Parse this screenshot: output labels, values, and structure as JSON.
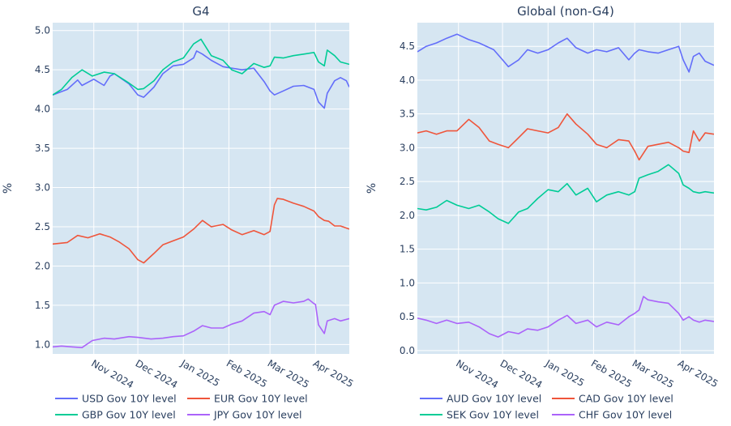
{
  "chart_data": [
    {
      "type": "line",
      "title": "G4",
      "ylabel": "%",
      "xlabel": "",
      "ylim": [
        0.88,
        5.1
      ],
      "grid": true,
      "legend_position": "bottom",
      "x_range": [
        "2024-10-04",
        "2025-04-24"
      ],
      "x_ticks": [
        {
          "date": "2024-11-01",
          "label": "Nov 2024"
        },
        {
          "date": "2024-12-01",
          "label": "Dec 2024"
        },
        {
          "date": "2025-01-01",
          "label": "Jan 2025"
        },
        {
          "date": "2025-02-01",
          "label": "Feb 2025"
        },
        {
          "date": "2025-03-01",
          "label": "Mar 2025"
        },
        {
          "date": "2025-04-01",
          "label": "Apr 2025"
        }
      ],
      "y_ticks": [
        1.0,
        1.5,
        2.0,
        2.5,
        3.0,
        3.5,
        4.0,
        4.5,
        5.0
      ],
      "y_tick_labels": [
        "1.0",
        "1.5",
        "2.0",
        "2.5",
        "3.0",
        "3.5",
        "4.0",
        "4.5",
        "5.0"
      ],
      "series": [
        {
          "name": "USD Gov 10Y level",
          "color": "#636efa",
          "x": [
            "2024-10-04",
            "2024-10-14",
            "2024-10-21",
            "2024-10-24",
            "2024-11-01",
            "2024-11-08",
            "2024-11-12",
            "2024-11-15",
            "2024-11-25",
            "2024-12-01",
            "2024-12-05",
            "2024-12-12",
            "2024-12-18",
            "2024-12-25",
            "2025-01-01",
            "2025-01-08",
            "2025-01-10",
            "2025-01-14",
            "2025-01-20",
            "2025-01-28",
            "2025-02-03",
            "2025-02-10",
            "2025-02-18",
            "2025-02-25",
            "2025-03-01",
            "2025-03-04",
            "2025-03-10",
            "2025-03-17",
            "2025-03-24",
            "2025-03-31",
            "2025-04-03",
            "2025-04-07",
            "2025-04-09",
            "2025-04-14",
            "2025-04-18",
            "2025-04-22",
            "2025-04-24"
          ],
          "values": [
            4.18,
            4.25,
            4.37,
            4.3,
            4.38,
            4.3,
            4.42,
            4.45,
            4.32,
            4.18,
            4.15,
            4.28,
            4.45,
            4.55,
            4.57,
            4.65,
            4.74,
            4.7,
            4.62,
            4.54,
            4.52,
            4.5,
            4.52,
            4.35,
            4.23,
            4.18,
            4.23,
            4.29,
            4.3,
            4.25,
            4.09,
            4.01,
            4.2,
            4.36,
            4.4,
            4.36,
            4.28
          ]
        },
        {
          "name": "EUR Gov 10Y level",
          "color": "#ef553b",
          "x": [
            "2024-10-04",
            "2024-10-14",
            "2024-10-21",
            "2024-10-28",
            "2024-11-05",
            "2024-11-12",
            "2024-11-18",
            "2024-11-25",
            "2024-12-01",
            "2024-12-05",
            "2024-12-12",
            "2024-12-18",
            "2024-12-25",
            "2025-01-01",
            "2025-01-08",
            "2025-01-14",
            "2025-01-20",
            "2025-01-28",
            "2025-02-03",
            "2025-02-10",
            "2025-02-18",
            "2025-02-25",
            "2025-03-01",
            "2025-03-04",
            "2025-03-06",
            "2025-03-10",
            "2025-03-17",
            "2025-03-24",
            "2025-03-31",
            "2025-04-03",
            "2025-04-07",
            "2025-04-10",
            "2025-04-14",
            "2025-04-18",
            "2025-04-24"
          ],
          "values": [
            2.28,
            2.3,
            2.39,
            2.36,
            2.41,
            2.37,
            2.31,
            2.22,
            2.08,
            2.04,
            2.16,
            2.27,
            2.32,
            2.37,
            2.47,
            2.58,
            2.5,
            2.53,
            2.46,
            2.4,
            2.45,
            2.4,
            2.44,
            2.78,
            2.86,
            2.85,
            2.8,
            2.76,
            2.7,
            2.63,
            2.58,
            2.57,
            2.51,
            2.51,
            2.47
          ]
        },
        {
          "name": "GBP Gov 10Y level",
          "color": "#00cc96",
          "x": [
            "2024-10-04",
            "2024-10-10",
            "2024-10-17",
            "2024-10-24",
            "2024-10-31",
            "2024-11-08",
            "2024-11-15",
            "2024-11-25",
            "2024-12-01",
            "2024-12-05",
            "2024-12-12",
            "2024-12-18",
            "2024-12-25",
            "2025-01-01",
            "2025-01-08",
            "2025-01-13",
            "2025-01-20",
            "2025-01-28",
            "2025-02-03",
            "2025-02-10",
            "2025-02-18",
            "2025-02-25",
            "2025-03-01",
            "2025-03-04",
            "2025-03-10",
            "2025-03-17",
            "2025-03-24",
            "2025-03-31",
            "2025-04-03",
            "2025-04-07",
            "2025-04-09",
            "2025-04-14",
            "2025-04-18",
            "2025-04-24"
          ],
          "values": [
            4.18,
            4.25,
            4.4,
            4.5,
            4.42,
            4.47,
            4.45,
            4.33,
            4.25,
            4.26,
            4.36,
            4.5,
            4.6,
            4.65,
            4.83,
            4.89,
            4.68,
            4.62,
            4.5,
            4.45,
            4.58,
            4.53,
            4.55,
            4.66,
            4.65,
            4.68,
            4.7,
            4.72,
            4.6,
            4.55,
            4.75,
            4.68,
            4.6,
            4.57
          ]
        },
        {
          "name": "JPY Gov 10Y level",
          "color": "#ab63fa",
          "x": [
            "2024-10-04",
            "2024-10-10",
            "2024-10-17",
            "2024-10-24",
            "2024-10-31",
            "2024-11-08",
            "2024-11-15",
            "2024-11-25",
            "2024-12-01",
            "2024-12-10",
            "2024-12-18",
            "2024-12-25",
            "2025-01-01",
            "2025-01-08",
            "2025-01-14",
            "2025-01-20",
            "2025-01-28",
            "2025-02-03",
            "2025-02-10",
            "2025-02-18",
            "2025-02-25",
            "2025-03-01",
            "2025-03-04",
            "2025-03-10",
            "2025-03-17",
            "2025-03-24",
            "2025-03-27",
            "2025-03-31",
            "2025-04-01",
            "2025-04-03",
            "2025-04-07",
            "2025-04-09",
            "2025-04-14",
            "2025-04-18",
            "2025-04-24"
          ],
          "values": [
            0.97,
            0.98,
            0.97,
            0.96,
            1.05,
            1.08,
            1.07,
            1.1,
            1.09,
            1.07,
            1.08,
            1.1,
            1.11,
            1.17,
            1.24,
            1.21,
            1.21,
            1.26,
            1.3,
            1.4,
            1.42,
            1.38,
            1.5,
            1.55,
            1.53,
            1.55,
            1.58,
            1.52,
            1.51,
            1.25,
            1.14,
            1.3,
            1.33,
            1.3,
            1.33
          ]
        }
      ]
    },
    {
      "type": "line",
      "title": "Global (non-G4)",
      "ylabel": "%",
      "xlabel": "",
      "ylim": [
        -0.05,
        4.85
      ],
      "grid": true,
      "legend_position": "bottom",
      "x_range": [
        "2024-10-04",
        "2025-04-24"
      ],
      "x_ticks": [
        {
          "date": "2024-11-01",
          "label": "Nov 2024"
        },
        {
          "date": "2024-12-01",
          "label": "Dec 2024"
        },
        {
          "date": "2025-01-01",
          "label": "Jan 2025"
        },
        {
          "date": "2025-02-01",
          "label": "Feb 2025"
        },
        {
          "date": "2025-03-01",
          "label": "Mar 2025"
        },
        {
          "date": "2025-04-01",
          "label": "Apr 2025"
        }
      ],
      "y_ticks": [
        0.0,
        0.5,
        1.0,
        1.5,
        2.0,
        2.5,
        3.0,
        3.5,
        4.0,
        4.5
      ],
      "y_tick_labels": [
        "0.0",
        "0.5",
        "1.0",
        "1.5",
        "2.0",
        "2.5",
        "3.0",
        "3.5",
        "4.0",
        "4.5"
      ],
      "series": [
        {
          "name": "AUD Gov 10Y level",
          "color": "#636efa",
          "x": [
            "2024-10-04",
            "2024-10-10",
            "2024-10-17",
            "2024-10-24",
            "2024-10-31",
            "2024-11-08",
            "2024-11-15",
            "2024-11-25",
            "2024-12-01",
            "2024-12-05",
            "2024-12-12",
            "2024-12-18",
            "2024-12-25",
            "2025-01-01",
            "2025-01-08",
            "2025-01-14",
            "2025-01-20",
            "2025-01-28",
            "2025-02-03",
            "2025-02-10",
            "2025-02-18",
            "2025-02-25",
            "2025-03-01",
            "2025-03-04",
            "2025-03-10",
            "2025-03-17",
            "2025-03-24",
            "2025-03-31",
            "2025-04-03",
            "2025-04-07",
            "2025-04-10",
            "2025-04-14",
            "2025-04-18",
            "2025-04-24"
          ],
          "values": [
            4.42,
            4.5,
            4.55,
            4.62,
            4.68,
            4.6,
            4.55,
            4.45,
            4.3,
            4.2,
            4.3,
            4.45,
            4.4,
            4.45,
            4.55,
            4.62,
            4.48,
            4.4,
            4.45,
            4.42,
            4.48,
            4.3,
            4.4,
            4.45,
            4.42,
            4.4,
            4.45,
            4.5,
            4.3,
            4.12,
            4.35,
            4.4,
            4.28,
            4.22
          ]
        },
        {
          "name": "CAD Gov 10Y level",
          "color": "#ef553b",
          "x": [
            "2024-10-04",
            "2024-10-10",
            "2024-10-17",
            "2024-10-24",
            "2024-10-31",
            "2024-11-08",
            "2024-11-15",
            "2024-11-22",
            "2024-11-28",
            "2024-12-05",
            "2024-12-12",
            "2024-12-18",
            "2024-12-25",
            "2025-01-01",
            "2025-01-08",
            "2025-01-14",
            "2025-01-20",
            "2025-01-28",
            "2025-02-03",
            "2025-02-10",
            "2025-02-18",
            "2025-02-25",
            "2025-03-01",
            "2025-03-04",
            "2025-03-10",
            "2025-03-17",
            "2025-03-24",
            "2025-03-31",
            "2025-04-03",
            "2025-04-07",
            "2025-04-10",
            "2025-04-14",
            "2025-04-18",
            "2025-04-24"
          ],
          "values": [
            3.22,
            3.25,
            3.2,
            3.25,
            3.25,
            3.42,
            3.3,
            3.1,
            3.05,
            3.0,
            3.15,
            3.28,
            3.25,
            3.22,
            3.3,
            3.5,
            3.35,
            3.2,
            3.05,
            3.0,
            3.12,
            3.1,
            2.95,
            2.82,
            3.02,
            3.05,
            3.08,
            3.0,
            2.95,
            2.93,
            3.25,
            3.1,
            3.22,
            3.2
          ]
        },
        {
          "name": "SEK Gov 10Y level",
          "color": "#00cc96",
          "x": [
            "2024-10-04",
            "2024-10-10",
            "2024-10-17",
            "2024-10-24",
            "2024-10-31",
            "2024-11-08",
            "2024-11-15",
            "2024-11-22",
            "2024-11-28",
            "2024-12-05",
            "2024-12-12",
            "2024-12-18",
            "2024-12-25",
            "2025-01-01",
            "2025-01-08",
            "2025-01-14",
            "2025-01-20",
            "2025-01-28",
            "2025-02-03",
            "2025-02-10",
            "2025-02-18",
            "2025-02-25",
            "2025-03-01",
            "2025-03-04",
            "2025-03-10",
            "2025-03-17",
            "2025-03-24",
            "2025-03-31",
            "2025-04-03",
            "2025-04-07",
            "2025-04-10",
            "2025-04-14",
            "2025-04-18",
            "2025-04-24"
          ],
          "values": [
            2.1,
            2.08,
            2.12,
            2.22,
            2.15,
            2.1,
            2.15,
            2.05,
            1.95,
            1.88,
            2.05,
            2.1,
            2.25,
            2.38,
            2.35,
            2.47,
            2.3,
            2.4,
            2.2,
            2.3,
            2.35,
            2.3,
            2.35,
            2.55,
            2.6,
            2.65,
            2.75,
            2.62,
            2.45,
            2.4,
            2.35,
            2.33,
            2.35,
            2.33
          ]
        },
        {
          "name": "CHF Gov 10Y level",
          "color": "#ab63fa",
          "x": [
            "2024-10-04",
            "2024-10-10",
            "2024-10-17",
            "2024-10-24",
            "2024-10-31",
            "2024-11-08",
            "2024-11-15",
            "2024-11-22",
            "2024-11-28",
            "2024-12-05",
            "2024-12-12",
            "2024-12-18",
            "2024-12-25",
            "2025-01-01",
            "2025-01-08",
            "2025-01-14",
            "2025-01-20",
            "2025-01-28",
            "2025-02-03",
            "2025-02-10",
            "2025-02-18",
            "2025-02-25",
            "2025-03-01",
            "2025-03-04",
            "2025-03-07",
            "2025-03-10",
            "2025-03-17",
            "2025-03-24",
            "2025-03-31",
            "2025-04-03",
            "2025-04-07",
            "2025-04-10",
            "2025-04-14",
            "2025-04-18",
            "2025-04-24"
          ],
          "values": [
            0.48,
            0.45,
            0.4,
            0.45,
            0.4,
            0.42,
            0.35,
            0.25,
            0.2,
            0.28,
            0.25,
            0.32,
            0.3,
            0.35,
            0.45,
            0.52,
            0.4,
            0.45,
            0.35,
            0.42,
            0.38,
            0.5,
            0.55,
            0.6,
            0.8,
            0.75,
            0.72,
            0.7,
            0.55,
            0.45,
            0.5,
            0.45,
            0.42,
            0.45,
            0.43
          ]
        }
      ]
    }
  ]
}
